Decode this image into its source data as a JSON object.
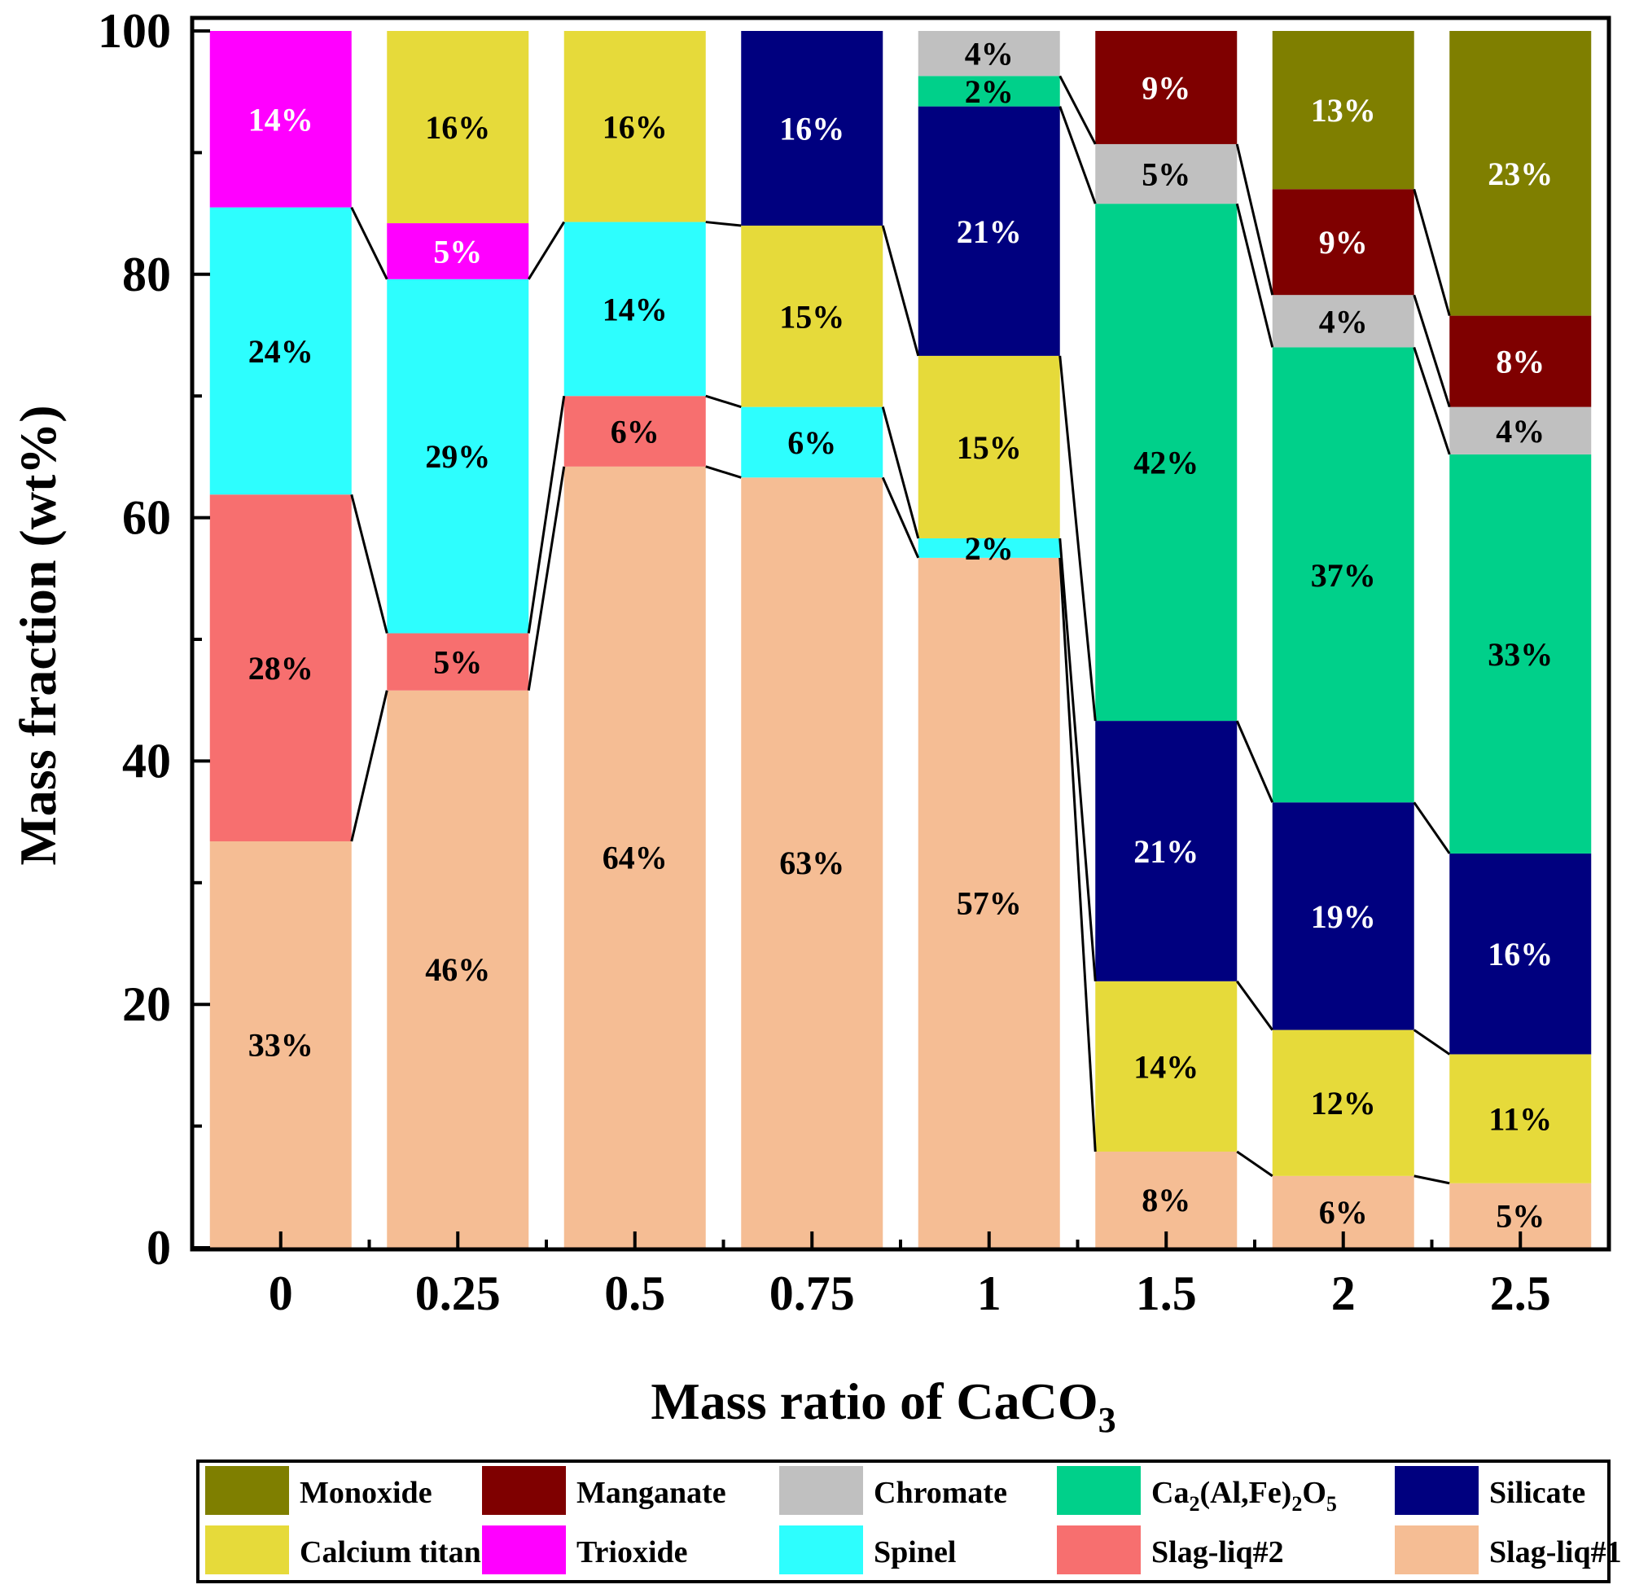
{
  "chart_data": {
    "type": "bar",
    "stacked": true,
    "xlabel_main": "Mass ratio of CaCO",
    "xlabel_sub": "3",
    "ylabel": "Mass fraction (wt%)",
    "ylim": [
      0,
      100
    ],
    "yticks": [
      "0",
      "20",
      "40",
      "60",
      "80",
      "100"
    ],
    "categories": [
      "0",
      "0.25",
      "0.5",
      "0.75",
      "1",
      "1.5",
      "2",
      "2.5"
    ],
    "components": [
      {
        "key": "slag1",
        "name": "Slag-liq#1",
        "color": "#f5bd94"
      },
      {
        "key": "slag2",
        "name": "Slag-liq#2",
        "color": "#f76f6f"
      },
      {
        "key": "spinel",
        "name": "Spinel",
        "color": "#2dfefe"
      },
      {
        "key": "trioxide",
        "name": "Trioxide",
        "color": "#ff00ff"
      },
      {
        "key": "titanate",
        "name": "Calcium titanate",
        "color": "#e6da3a"
      },
      {
        "key": "silicate",
        "name": "Silicate",
        "color": "#00007f"
      },
      {
        "key": "caalfe",
        "name": "Ca2(Al,Fe)2O5",
        "color": "#00d08a"
      },
      {
        "key": "chromate",
        "name": "Chromate",
        "color": "#c0c0c0"
      },
      {
        "key": "manganate",
        "name": "Manganate",
        "color": "#7f0000"
      },
      {
        "key": "monoxide",
        "name": "Monoxide",
        "color": "#7f7f00"
      }
    ],
    "bars": [
      {
        "category": "0",
        "segments": [
          {
            "c": "slag1",
            "v": 33.4,
            "label": "33%"
          },
          {
            "c": "slag2",
            "v": 28.5,
            "label": "28%"
          },
          {
            "c": "spinel",
            "v": 23.6,
            "label": "24%"
          },
          {
            "c": "trioxide",
            "v": 14.5,
            "label": "14%"
          }
        ]
      },
      {
        "category": "0.25",
        "segments": [
          {
            "c": "slag1",
            "v": 45.8,
            "label": "46%"
          },
          {
            "c": "slag2",
            "v": 4.7,
            "label": "5%"
          },
          {
            "c": "spinel",
            "v": 29.1,
            "label": "29%"
          },
          {
            "c": "trioxide",
            "v": 4.6,
            "label": "5%"
          },
          {
            "c": "titanate",
            "v": 15.8,
            "label": "16%"
          }
        ]
      },
      {
        "category": "0.5",
        "segments": [
          {
            "c": "slag1",
            "v": 64.2,
            "label": "64%"
          },
          {
            "c": "slag2",
            "v": 5.8,
            "label": "6%"
          },
          {
            "c": "spinel",
            "v": 14.3,
            "label": "14%"
          },
          {
            "c": "titanate",
            "v": 15.7,
            "label": "16%"
          }
        ]
      },
      {
        "category": "0.75",
        "segments": [
          {
            "c": "slag1",
            "v": 63.3,
            "label": "63%"
          },
          {
            "c": "spinel",
            "v": 5.8,
            "label": "6%"
          },
          {
            "c": "titanate",
            "v": 14.9,
            "label": "15%"
          },
          {
            "c": "silicate",
            "v": 16.0,
            "label": "16%"
          }
        ]
      },
      {
        "category": "1",
        "segments": [
          {
            "c": "slag1",
            "v": 56.7,
            "label": "57%"
          },
          {
            "c": "spinel",
            "v": 1.6,
            "label": "2%"
          },
          {
            "c": "titanate",
            "v": 15.0,
            "label": "15%"
          },
          {
            "c": "silicate",
            "v": 20.5,
            "label": "21%"
          },
          {
            "c": "caalfe",
            "v": 2.5,
            "label": "2%"
          },
          {
            "c": "chromate",
            "v": 3.7,
            "label": "4%"
          }
        ]
      },
      {
        "category": "1.5",
        "segments": [
          {
            "c": "slag1",
            "v": 7.9,
            "label": "8%"
          },
          {
            "c": "titanate",
            "v": 14.0,
            "label": "14%"
          },
          {
            "c": "silicate",
            "v": 21.4,
            "label": "21%"
          },
          {
            "c": "caalfe",
            "v": 42.5,
            "label": "42%"
          },
          {
            "c": "chromate",
            "v": 4.9,
            "label": "5%"
          },
          {
            "c": "manganate",
            "v": 9.3,
            "label": "9%"
          }
        ]
      },
      {
        "category": "2",
        "segments": [
          {
            "c": "slag1",
            "v": 5.9,
            "label": "6%"
          },
          {
            "c": "titanate",
            "v": 12.0,
            "label": "12%"
          },
          {
            "c": "silicate",
            "v": 18.7,
            "label": "19%"
          },
          {
            "c": "caalfe",
            "v": 37.4,
            "label": "37%"
          },
          {
            "c": "chromate",
            "v": 4.3,
            "label": "4%"
          },
          {
            "c": "manganate",
            "v": 8.7,
            "label": "9%"
          },
          {
            "c": "monoxide",
            "v": 13.0,
            "label": "13%"
          }
        ]
      },
      {
        "category": "2.5",
        "segments": [
          {
            "c": "slag1",
            "v": 5.3,
            "label": "5%"
          },
          {
            "c": "titanate",
            "v": 10.6,
            "label": "11%"
          },
          {
            "c": "silicate",
            "v": 16.5,
            "label": "16%"
          },
          {
            "c": "caalfe",
            "v": 32.8,
            "label": "33%"
          },
          {
            "c": "chromate",
            "v": 3.9,
            "label": "4%"
          },
          {
            "c": "manganate",
            "v": 7.5,
            "label": "8%"
          },
          {
            "c": "monoxide",
            "v": 23.4,
            "label": "23%"
          }
        ]
      }
    ],
    "legend": {
      "position": "bottom",
      "rows": [
        [
          "monoxide",
          "manganate",
          "chromate",
          "caalfe",
          "silicate"
        ],
        [
          "titanate",
          "trioxide",
          "spinel",
          "slag2",
          "slag1"
        ]
      ],
      "caalfe_label_parts": [
        "Ca",
        "2",
        "(Al,Fe)",
        "2",
        "O",
        "5"
      ]
    }
  }
}
